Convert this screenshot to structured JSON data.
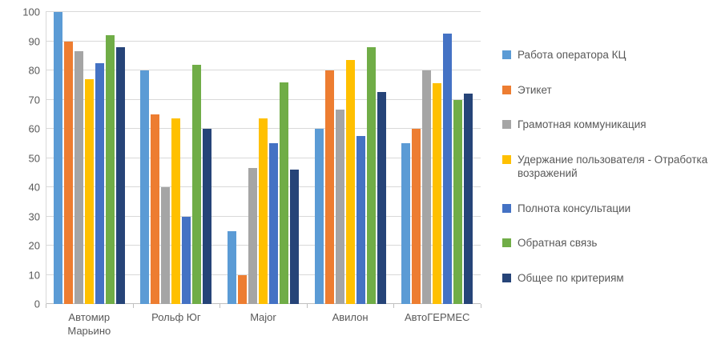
{
  "colors": {
    "background": "#FFFFFF",
    "text": "#595959",
    "gridline": "#D9D9D9",
    "axis_line": "#BFBFBF"
  },
  "chart_data": {
    "type": "bar",
    "title": "",
    "xlabel": "",
    "ylabel": "",
    "ylim": [
      0,
      100
    ],
    "yticks": [
      0,
      10,
      20,
      30,
      40,
      50,
      60,
      70,
      80,
      90,
      100
    ],
    "grid": true,
    "legend_position": "right",
    "categories": [
      "Автомир Марьино",
      "Рольф Юг",
      "Major",
      "Авилон",
      "АвтоГЕРМЕС"
    ],
    "series": [
      {
        "name": "Работа оператора КЦ",
        "color": "#5B9BD5",
        "values": [
          100,
          80,
          25,
          60,
          55
        ]
      },
      {
        "name": "Этикет",
        "color": "#ED7D31",
        "values": [
          90,
          65,
          10,
          80,
          60
        ]
      },
      {
        "name": "Грамотная коммуникация",
        "color": "#A5A5A5",
        "values": [
          86.5,
          40,
          46.5,
          66.5,
          80
        ]
      },
      {
        "name": "Удержание пользователя - Отработка возражений",
        "color": "#FFC000",
        "values": [
          77,
          63.5,
          63.5,
          83.5,
          75.5
        ]
      },
      {
        "name": "Полнота консультации",
        "color": "#4472C4",
        "values": [
          82.5,
          30,
          55,
          57.5,
          92.5
        ]
      },
      {
        "name": "Обратная связь",
        "color": "#70AD47",
        "values": [
          92,
          82,
          76,
          88,
          70
        ]
      },
      {
        "name": "Общее по критериям",
        "color": "#264478",
        "values": [
          88,
          60,
          46,
          72.5,
          72
        ]
      }
    ]
  }
}
